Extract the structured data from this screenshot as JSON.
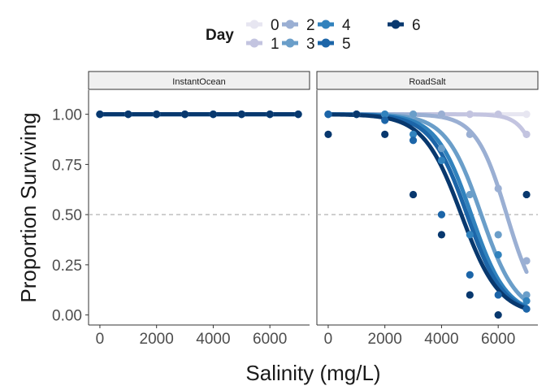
{
  "chart_data": {
    "type": "scatter",
    "xlabel": "Salinity (mg/L)",
    "ylabel": "Proportion Surviving",
    "xlim": [
      -400,
      7400
    ],
    "ylim": [
      -0.05,
      1.12
    ],
    "x_ticks": [
      0,
      2000,
      4000,
      6000
    ],
    "x_tick_labels": [
      "0",
      "2000",
      "4000",
      "6000"
    ],
    "y_ticks": [
      0,
      0.25,
      0.5,
      0.75,
      1.0
    ],
    "y_tick_labels": [
      "0.00",
      "0.25",
      "0.50",
      "0.75",
      "1.00"
    ],
    "reference_line": {
      "y": 0.5,
      "style": "dashed"
    },
    "grid": false,
    "legend": {
      "title": "Day",
      "placement": "top",
      "entries": [
        "0",
        "1",
        "2",
        "3",
        "4",
        "5",
        "6"
      ],
      "colors": [
        "#e7e6f1",
        "#c3c4e0",
        "#9aafd3",
        "#6a9ec9",
        "#3182bd",
        "#1c65a8",
        "#08386e"
      ]
    },
    "panels": [
      {
        "label": "InstantOcean",
        "x": [
          0,
          1000,
          2000,
          3000,
          4000,
          5000,
          6000,
          7000
        ],
        "points": [
          {
            "day": 0,
            "y": [
              1,
              1,
              1,
              1,
              1,
              1,
              1,
              1
            ]
          },
          {
            "day": 1,
            "y": [
              1,
              1,
              1,
              1,
              1,
              1,
              1,
              1
            ]
          },
          {
            "day": 2,
            "y": [
              1,
              1,
              1,
              1,
              1,
              1,
              1,
              1
            ]
          },
          {
            "day": 3,
            "y": [
              1,
              1,
              1,
              1,
              1,
              1,
              1,
              1
            ]
          },
          {
            "day": 4,
            "y": [
              1,
              1,
              1,
              1,
              1,
              1,
              1,
              1
            ]
          },
          {
            "day": 5,
            "y": [
              1,
              1,
              1,
              1,
              1,
              1,
              1,
              1
            ]
          },
          {
            "day": 6,
            "y": [
              1,
              1,
              1,
              1,
              1,
              1,
              1,
              1
            ]
          }
        ],
        "fits": [
          {
            "day": 0,
            "midpoint": 100000,
            "scale": 500
          },
          {
            "day": 1,
            "midpoint": 100000,
            "scale": 500
          },
          {
            "day": 2,
            "midpoint": 100000,
            "scale": 500
          },
          {
            "day": 3,
            "midpoint": 100000,
            "scale": 500
          },
          {
            "day": 4,
            "midpoint": 100000,
            "scale": 500
          },
          {
            "day": 5,
            "midpoint": 100000,
            "scale": 500
          },
          {
            "day": 6,
            "midpoint": 100000,
            "scale": 500
          }
        ]
      },
      {
        "label": "RoadSalt",
        "x": [
          0,
          1000,
          2000,
          3000,
          4000,
          5000,
          6000,
          7000
        ],
        "points": [
          {
            "day": 0,
            "y": [
              1,
              1,
              1,
              1,
              1,
              1,
              1,
              1
            ]
          },
          {
            "day": 1,
            "y": [
              1,
              1,
              1,
              1,
              1,
              1,
              1,
              0.9
            ]
          },
          {
            "day": 2,
            "y": [
              1,
              1,
              1,
              1,
              1,
              0.9,
              0.63,
              0.27
            ]
          },
          {
            "day": 3,
            "y": [
              1,
              1,
              1,
              1,
              0.83,
              0.6,
              0.4,
              0.1
            ]
          },
          {
            "day": 4,
            "y": [
              1,
              1,
              1,
              0.9,
              0.77,
              0.4,
              0.3,
              0.07
            ]
          },
          {
            "day": 5,
            "y": [
              1,
              1,
              0.97,
              0.87,
              0.5,
              0.2,
              0.1,
              0.03
            ]
          },
          {
            "day": 6,
            "y": [
              0.9,
              1,
              0.9,
              0.6,
              0.4,
              0.1,
              0,
              0.6
            ]
          }
        ],
        "fits": [
          {
            "day": 0,
            "midpoint": 100000,
            "scale": 500
          },
          {
            "day": 1,
            "midpoint": 7800,
            "scale": 380
          },
          {
            "day": 2,
            "midpoint": 6300,
            "scale": 540
          },
          {
            "day": 3,
            "midpoint": 5400,
            "scale": 620
          },
          {
            "day": 4,
            "midpoint": 5050,
            "scale": 620
          },
          {
            "day": 5,
            "midpoint": 4900,
            "scale": 640
          },
          {
            "day": 6,
            "midpoint": 4700,
            "scale": 670
          }
        ]
      }
    ]
  }
}
